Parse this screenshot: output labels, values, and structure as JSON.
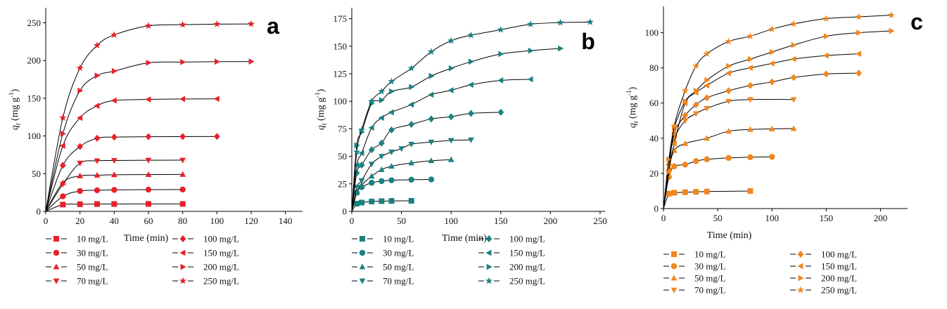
{
  "legend_labels": [
    "10 mg/L",
    "30 mg/L",
    "50 mg/L",
    "70 mg/L",
    "100 mg/L",
    "150 mg/L",
    "200 mg/L",
    "250 mg/L"
  ],
  "markers": [
    "square",
    "circle",
    "triangle-up",
    "triangle-down",
    "diamond",
    "triangle-left",
    "triangle-right",
    "star"
  ],
  "chart_data": [
    {
      "type": "line",
      "panel": "a",
      "color": "#e8202a",
      "xlabel": "Time (min)",
      "ylabel": "q_t (mg g^-1)",
      "xlim": [
        0,
        150
      ],
      "ylim": [
        0,
        270
      ],
      "xticks": [
        0,
        20,
        40,
        60,
        80,
        100,
        120,
        140
      ],
      "yticks": [
        0,
        50,
        100,
        150,
        200,
        250
      ],
      "series": [
        {
          "name": "10 mg/L",
          "x": [
            0,
            10,
            20,
            30,
            40,
            60,
            80
          ],
          "y": [
            0,
            9,
            9.5,
            9.7,
            9.8,
            9.9,
            9.9
          ]
        },
        {
          "name": "30 mg/L",
          "x": [
            0,
            10,
            20,
            30,
            40,
            60,
            80
          ],
          "y": [
            0,
            20,
            27,
            28,
            28.5,
            28.8,
            29
          ]
        },
        {
          "name": "50 mg/L",
          "x": [
            0,
            10,
            20,
            30,
            40,
            60,
            80
          ],
          "y": [
            0,
            38,
            47,
            48,
            48.5,
            48.8,
            49
          ]
        },
        {
          "name": "70 mg/L",
          "x": [
            0,
            10,
            20,
            30,
            40,
            60,
            80
          ],
          "y": [
            0,
            36,
            64,
            67,
            67.5,
            67.8,
            68
          ]
        },
        {
          "name": "100 mg/L",
          "x": [
            0,
            10,
            20,
            30,
            40,
            60,
            80,
            100
          ],
          "y": [
            0,
            61,
            86,
            97,
            98.5,
            99,
            99.2,
            99.3
          ]
        },
        {
          "name": "150 mg/L",
          "x": [
            0,
            10,
            20,
            30,
            40,
            60,
            80,
            100
          ],
          "y": [
            0,
            87,
            124,
            140,
            147,
            148.5,
            149,
            149.2
          ]
        },
        {
          "name": "200 mg/L",
          "x": [
            0,
            10,
            20,
            30,
            40,
            60,
            80,
            100,
            120
          ],
          "y": [
            0,
            103,
            160,
            180,
            186,
            197,
            198,
            198.5,
            198.7
          ]
        },
        {
          "name": "250 mg/L",
          "x": [
            0,
            10,
            20,
            30,
            40,
            60,
            80,
            100,
            120
          ],
          "y": [
            0,
            124,
            190,
            220,
            234,
            246,
            247.5,
            248.2,
            248.5
          ]
        }
      ]
    },
    {
      "type": "line",
      "panel": "b",
      "color": "#1a8181",
      "xlabel": "Time (min)",
      "ylabel": "q_t (mg g^-1)",
      "xlim": [
        0,
        255
      ],
      "ylim": [
        0,
        185
      ],
      "xticks": [
        0,
        50,
        100,
        150,
        200,
        250
      ],
      "yticks": [
        0,
        25,
        50,
        75,
        100,
        125,
        150,
        175
      ],
      "series": [
        {
          "name": "10 mg/L",
          "x": [
            0,
            5,
            10,
            20,
            30,
            40,
            60
          ],
          "y": [
            0,
            7,
            8,
            9,
            9.3,
            9.5,
            9.6
          ]
        },
        {
          "name": "30 mg/L",
          "x": [
            0,
            5,
            10,
            20,
            30,
            40,
            60,
            80
          ],
          "y": [
            0,
            17,
            22,
            26,
            27.5,
            28.3,
            28.8,
            29
          ]
        },
        {
          "name": "50 mg/L",
          "x": [
            0,
            5,
            10,
            20,
            30,
            40,
            60,
            80,
            100
          ],
          "y": [
            0,
            17,
            24,
            32,
            38,
            41,
            44,
            46,
            47
          ]
        },
        {
          "name": "70 mg/L",
          "x": [
            0,
            5,
            10,
            20,
            30,
            40,
            50,
            60,
            80,
            100,
            120
          ],
          "y": [
            0,
            22,
            28,
            43,
            50,
            54,
            57,
            61,
            63,
            64.5,
            65
          ]
        },
        {
          "name": "100 mg/L",
          "x": [
            0,
            5,
            10,
            20,
            30,
            40,
            60,
            80,
            100,
            120,
            150
          ],
          "y": [
            0,
            35,
            42,
            56,
            62,
            74,
            79,
            84,
            86,
            89,
            90
          ]
        },
        {
          "name": "150 mg/L",
          "x": [
            0,
            5,
            10,
            20,
            30,
            40,
            60,
            80,
            100,
            120,
            150,
            180
          ],
          "y": [
            0,
            42,
            53,
            76,
            85,
            90,
            97,
            106,
            110,
            115,
            119,
            120
          ]
        },
        {
          "name": "200 mg/L",
          "x": [
            0,
            5,
            10,
            20,
            30,
            40,
            60,
            80,
            100,
            120,
            150,
            180,
            210
          ],
          "y": [
            0,
            60,
            72,
            98,
            101,
            109,
            113,
            123,
            130,
            136,
            143,
            146,
            148
          ]
        },
        {
          "name": "250 mg/L",
          "x": [
            0,
            5,
            10,
            20,
            30,
            40,
            60,
            80,
            100,
            120,
            150,
            180,
            210,
            240
          ],
          "y": [
            0,
            54,
            74,
            100,
            109,
            118,
            130,
            145,
            155,
            160,
            165,
            170,
            171.5,
            172
          ]
        }
      ]
    },
    {
      "type": "line",
      "panel": "c",
      "color": "#f0861e",
      "xlabel": "Time (min)",
      "ylabel": "q_t (mg g^-1)",
      "xlim": [
        0,
        225
      ],
      "ylim": [
        0,
        115
      ],
      "xticks": [
        0,
        50,
        100,
        150,
        200
      ],
      "yticks": [
        0,
        20,
        40,
        60,
        80,
        100
      ],
      "series": [
        {
          "name": "10 mg/L",
          "x": [
            0,
            5,
            10,
            20,
            30,
            40,
            80
          ],
          "y": [
            0,
            8.5,
            9,
            9.3,
            9.5,
            9.7,
            10
          ]
        },
        {
          "name": "30 mg/L",
          "x": [
            0,
            5,
            10,
            20,
            30,
            40,
            60,
            80,
            100
          ],
          "y": [
            0,
            18,
            24,
            25,
            27,
            28,
            28.8,
            29.2,
            29.4
          ]
        },
        {
          "name": "50 mg/L",
          "x": [
            0,
            5,
            10,
            20,
            40,
            60,
            80,
            100,
            120
          ],
          "y": [
            0,
            22,
            33,
            37,
            40,
            44,
            45,
            45.3,
            45.5
          ]
        },
        {
          "name": "70 mg/L",
          "x": [
            0,
            5,
            10,
            20,
            30,
            40,
            60,
            80,
            120
          ],
          "y": [
            0,
            27,
            40,
            50,
            54,
            57,
            61,
            62,
            62
          ]
        },
        {
          "name": "100 mg/L",
          "x": [
            0,
            5,
            10,
            20,
            30,
            40,
            60,
            80,
            100,
            120,
            150,
            180
          ],
          "y": [
            0,
            25,
            43,
            53,
            59,
            63,
            67,
            70,
            72,
            74.5,
            76.5,
            77
          ]
        },
        {
          "name": "150 mg/L",
          "x": [
            0,
            5,
            10,
            20,
            30,
            40,
            60,
            80,
            100,
            120,
            150,
            180
          ],
          "y": [
            0,
            22,
            37,
            60,
            66,
            70,
            77,
            80,
            82.5,
            85,
            87,
            88
          ]
        },
        {
          "name": "200 mg/L",
          "x": [
            0,
            5,
            10,
            20,
            30,
            40,
            60,
            80,
            100,
            120,
            150,
            180,
            210
          ],
          "y": [
            0,
            28,
            46,
            61,
            67,
            73,
            81,
            85,
            89,
            93,
            98,
            100,
            101
          ]
        },
        {
          "name": "250 mg/L",
          "x": [
            0,
            5,
            10,
            20,
            30,
            40,
            60,
            80,
            100,
            120,
            150,
            180,
            210
          ],
          "y": [
            0,
            21,
            47,
            67,
            81,
            88,
            95,
            98,
            102,
            105,
            108,
            109,
            110
          ]
        }
      ]
    }
  ]
}
